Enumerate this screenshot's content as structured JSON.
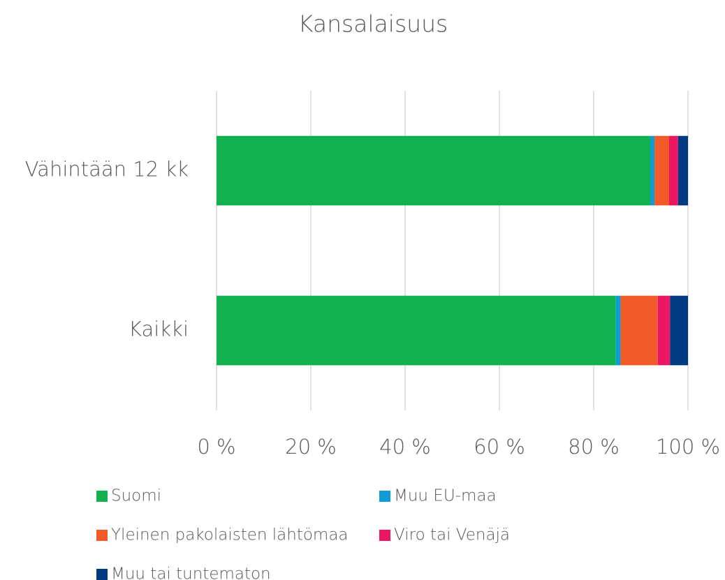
{
  "chart_data": {
    "type": "bar",
    "orientation": "horizontal",
    "stacked": true,
    "title": "Kansalaisuus",
    "categories": [
      "Vähintään 12 kk",
      "Kaikki"
    ],
    "series": [
      {
        "name": "Suomi",
        "color": "#12b04e",
        "values": [
          92.0,
          84.7
        ]
      },
      {
        "name": "Muu EU-maa",
        "color": "#0f9bd7",
        "values": [
          0.9,
          1.0
        ]
      },
      {
        "name": "Yleinen pakolaisten lähtömaa",
        "color": "#f15a29",
        "values": [
          3.1,
          7.9
        ]
      },
      {
        "name": "Viro tai Venäjä",
        "color": "#ec1763",
        "values": [
          1.9,
          2.6
        ]
      },
      {
        "name": "Muu tai tuntematon",
        "color": "#003b82",
        "values": [
          2.1,
          3.8
        ]
      }
    ],
    "xlim": [
      0,
      100
    ],
    "xticks": [
      {
        "value": 0,
        "label": "0 %"
      },
      {
        "value": 20,
        "label": "20 %"
      },
      {
        "value": 40,
        "label": "40 %"
      },
      {
        "value": 60,
        "label": "60 %"
      },
      {
        "value": 80,
        "label": "80 %"
      },
      {
        "value": 100,
        "label": "100 %"
      }
    ],
    "grid": true,
    "legend": "bottom"
  }
}
